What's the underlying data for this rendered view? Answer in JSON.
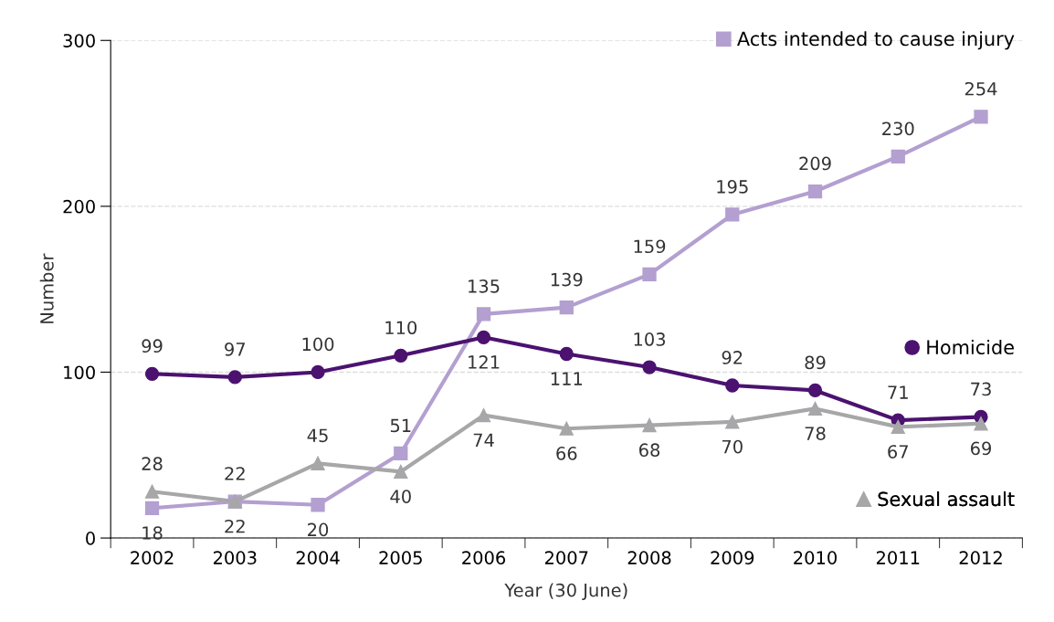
{
  "chart_data": {
    "type": "line",
    "xlabel": "Year (30 June)",
    "ylabel": "Number",
    "categories": [
      "2002",
      "2003",
      "2004",
      "2005",
      "2006",
      "2007",
      "2008",
      "2009",
      "2010",
      "2011",
      "2012"
    ],
    "series": [
      {
        "name": "Acts intended to cause injury",
        "color": "#b39fd0",
        "marker": "square",
        "values": [
          18,
          22,
          20,
          51,
          135,
          139,
          159,
          195,
          209,
          230,
          254
        ]
      },
      {
        "name": "Homicide",
        "color": "#4b1270",
        "marker": "circle",
        "values": [
          99,
          97,
          100,
          110,
          121,
          111,
          103,
          92,
          89,
          71,
          73
        ]
      },
      {
        "name": "Sexual assault",
        "color": "#a7a7a9",
        "marker": "triangle",
        "values": [
          28,
          22,
          45,
          40,
          74,
          66,
          68,
          70,
          78,
          67,
          69
        ]
      }
    ],
    "ylim": [
      0,
      300
    ],
    "yticks": [
      0,
      100,
      200,
      300
    ],
    "grid": "y",
    "legend": "right",
    "data_labels": true,
    "line_style": "solid"
  }
}
